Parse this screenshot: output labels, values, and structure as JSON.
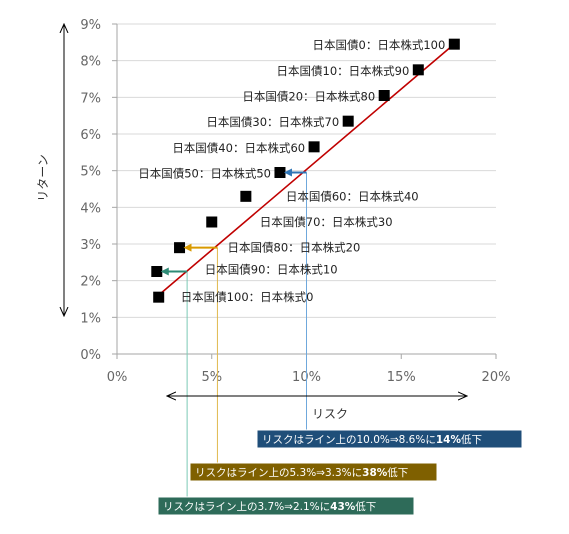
{
  "chart_data": {
    "type": "scatter",
    "title": "",
    "xlabel": "リスク",
    "ylabel": "リターン",
    "xlim": [
      0,
      20
    ],
    "ylim": [
      0,
      9
    ],
    "x_ticks": [
      "0%",
      "5%",
      "10%",
      "15%",
      "20%"
    ],
    "y_ticks": [
      "0%",
      "1%",
      "2%",
      "3%",
      "4%",
      "5%",
      "6%",
      "7%",
      "8%",
      "9%"
    ],
    "grid": "horizontal",
    "legend": "none",
    "points": [
      {
        "label": "日本国債100：日本株式0",
        "x": 2.2,
        "y": 1.55
      },
      {
        "label": "日本国債90：日本株式10",
        "x": 2.1,
        "y": 2.25
      },
      {
        "label": "日本国債80：日本株式20",
        "x": 3.3,
        "y": 2.9
      },
      {
        "label": "日本国債70：日本株式30",
        "x": 5.0,
        "y": 3.6
      },
      {
        "label": "日本国債60：日本株式40",
        "x": 6.8,
        "y": 4.3
      },
      {
        "label": "日本国債50：日本株式50",
        "x": 8.6,
        "y": 4.95
      },
      {
        "label": "日本国債40：日本株式60",
        "x": 10.4,
        "y": 5.65
      },
      {
        "label": "日本国債30：日本株式70",
        "x": 12.2,
        "y": 6.35
      },
      {
        "label": "日本国債20：日本株式80",
        "x": 14.1,
        "y": 7.05
      },
      {
        "label": "日本国債10：日本株式90",
        "x": 15.9,
        "y": 7.75
      },
      {
        "label": "日本国債0：日本株式100",
        "x": 17.8,
        "y": 8.45
      }
    ],
    "line": {
      "x1": 2.3,
      "y1": 1.65,
      "x2": 17.9,
      "y2": 8.5
    },
    "arrows": [
      {
        "from_x": 10.0,
        "to_x": 8.6,
        "y": 4.95
      },
      {
        "from_x": 5.3,
        "to_x": 3.3,
        "y": 2.9
      },
      {
        "from_x": 3.7,
        "to_x": 2.1,
        "y": 2.25
      }
    ],
    "callouts": [
      {
        "pre": "リスクはライン上の10.0%⇒8.6%に",
        "bold": "14%",
        "post": "低下"
      },
      {
        "pre": "リスクはライン上の5.3%⇒3.3%に",
        "bold": "38%",
        "post": "低下"
      },
      {
        "pre": "リスクはライン上の3.7%⇒2.1%に",
        "bold": "43%",
        "post": "低下"
      }
    ],
    "colors": {
      "marker": "#000000",
      "line": "#c00000",
      "axis": "#a6a6a6",
      "grid": "#d9d9d9",
      "callouts": [
        "#1f4e79",
        "#7f6000",
        "#2e6b59"
      ],
      "arrows": [
        "#2e75b6",
        "#d99a00",
        "#2e8b76"
      ],
      "guides": [
        "#6fa8dc",
        "#e0b94f",
        "#7ccab5"
      ]
    }
  }
}
